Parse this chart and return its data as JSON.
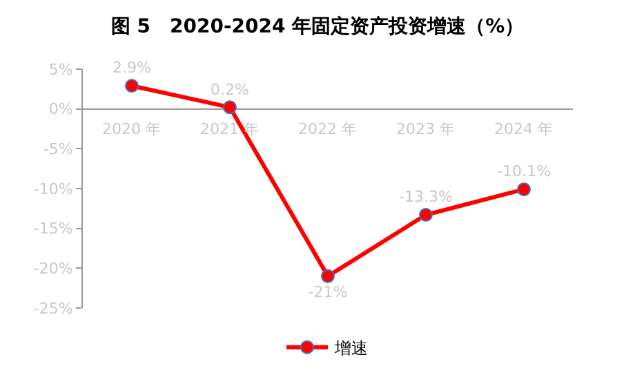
{
  "chart_data": {
    "type": "line",
    "title": "图 5　2020-2024 年固定资产投资增速（%）",
    "categories": [
      "2020 年",
      "2021 年",
      "2022 年",
      "2023 年",
      "2024 年"
    ],
    "series": [
      {
        "name": "增速",
        "color": "#ff0000",
        "values": [
          2.9,
          0.2,
          -21,
          -13.3,
          -10.1
        ],
        "value_labels": [
          "2.9%",
          "0.2%",
          "-21%",
          "-13.3%",
          "-10.1%"
        ]
      }
    ],
    "ylim": [
      -25,
      5
    ],
    "yticks": [
      {
        "value": 5,
        "label": "5%"
      },
      {
        "value": 0,
        "label": "0%"
      },
      {
        "value": -5,
        "label": "-5%"
      },
      {
        "value": -10,
        "label": "-10%"
      },
      {
        "value": -15,
        "label": "-15%"
      },
      {
        "value": -20,
        "label": "-20%"
      },
      {
        "value": -25,
        "label": "-25%"
      }
    ],
    "legend": "bottom",
    "marker": "circle",
    "line_style": "solid"
  }
}
